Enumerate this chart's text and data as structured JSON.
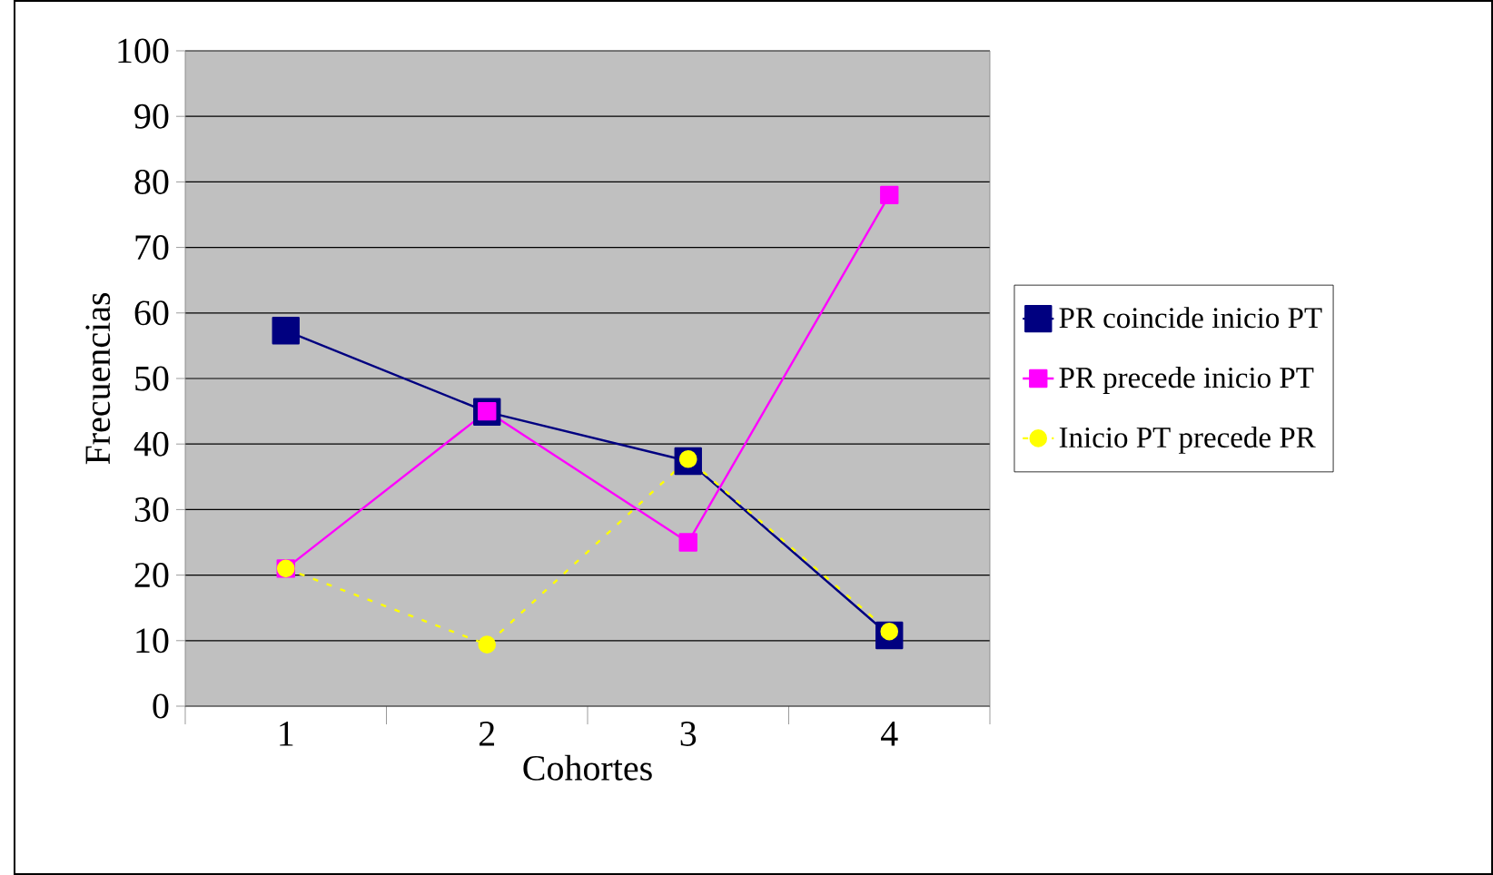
{
  "chart_data": {
    "type": "line",
    "xlabel": "Cohortes",
    "ylabel": "Frecuencias",
    "categories": [
      "1",
      "2",
      "3",
      "4"
    ],
    "series": [
      {
        "name": "PR coincide inicio PT",
        "color": "#000080",
        "marker": "square",
        "line_style": "solid",
        "values": [
          57.3,
          44.9,
          37.4,
          10.8
        ]
      },
      {
        "name": "PR precede inicio PT",
        "color": "#ff00ff",
        "marker": "square",
        "line_style": "solid",
        "values": [
          21,
          45,
          25,
          78
        ]
      },
      {
        "name": "Inicio PT precede PR",
        "color": "#ffff00",
        "marker": "circle",
        "line_style": "dashed",
        "values": [
          21,
          9.4,
          37.7,
          11.4
        ]
      }
    ],
    "ylim": [
      0,
      100
    ],
    "yticks": [
      0,
      10,
      20,
      30,
      40,
      50,
      60,
      70,
      80,
      90,
      100
    ],
    "grid": "y",
    "legend": "right"
  }
}
